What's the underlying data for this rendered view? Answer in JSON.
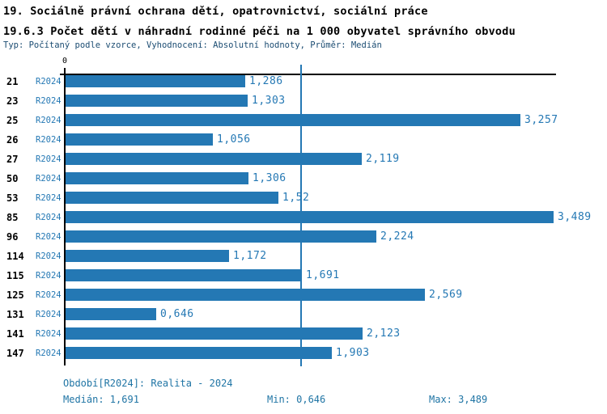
{
  "header": {
    "title_line1": "19. Sociálně právní ochrana dětí, opatrovnictví, sociální práce",
    "title_line2": "19.6.3 Počet dětí v náhradní rodinné péči na 1 000 obyvatel správního obvodu",
    "subtitle": "Typ: Počítaný podle vzorce, Vyhodnocení: Absolutní hodnoty, Průměr: Medián"
  },
  "chart_data": {
    "type": "bar",
    "orientation": "horizontal",
    "title": "19.6.3 Počet dětí v náhradní rodinné péči na 1 000 obyvatel správního obvodu",
    "categories": [
      "21",
      "23",
      "25",
      "26",
      "27",
      "50",
      "53",
      "85",
      "96",
      "114",
      "115",
      "125",
      "131",
      "141",
      "147"
    ],
    "series_label": "R2024",
    "values": [
      1.286,
      1.303,
      3.257,
      1.056,
      2.119,
      1.306,
      1.52,
      3.489,
      2.224,
      1.172,
      1.691,
      2.569,
      0.646,
      2.123,
      1.903
    ],
    "value_labels": [
      "1,286",
      "1,303",
      "3,257",
      "1,056",
      "2,119",
      "1,306",
      "1,52",
      "3,489",
      "2,224",
      "1,172",
      "1,691",
      "2,569",
      "0,646",
      "2,123",
      "1,903"
    ],
    "xlabel": "",
    "ylabel": "",
    "xlim": [
      0,
      3.515
    ],
    "axis_zero_label": "0",
    "grid": "single vertical median gridline",
    "median_value": 1.691,
    "min_value": 0.646,
    "max_value": 3.489,
    "legend_position": "none"
  },
  "footer": {
    "period": "Období[R2024]: Realita - 2024",
    "median": "Medián: 1,691",
    "min": "Min: 0,646",
    "max": "Max: 3,489"
  },
  "colors": {
    "bar": "#2478b4",
    "axis": "#000000",
    "label_blue": "#2478b4",
    "footer_blue": "#2075a5",
    "subtitle": "#1b4c72",
    "title": "#000000",
    "background": "#ffffff"
  }
}
